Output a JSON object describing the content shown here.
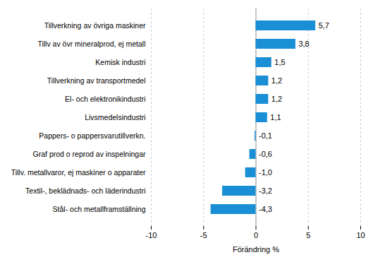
{
  "chart_data": {
    "type": "bar",
    "orientation": "horizontal",
    "categories": [
      "Tillverkning av övriga maskiner",
      "Tillv av övr mineralprod, ej metall",
      "Kemisk industri",
      "Tillverkning av transportmedel",
      "El- och elektronikindustri",
      "Livsmedelsindustri",
      "Pappers- o pappersvarutillverkn.",
      "Graf prod o reprod av inspelningar",
      "Tillv. metallvaror, ej maskiner o apparater",
      "Textil-, beklädnads- och läderindustri",
      "Stål- och metallframställning"
    ],
    "values": [
      5.7,
      3.8,
      1.5,
      1.2,
      1.2,
      1.1,
      -0.1,
      -0.6,
      -1.0,
      -3.2,
      -4.3
    ],
    "value_labels": [
      "5,7",
      "3,8",
      "1,5",
      "1,2",
      "1,2",
      "1,1",
      "-0,1",
      "-0,6",
      "-1,0",
      "-3,2",
      "-4,3"
    ],
    "data_labels": true,
    "color": "#1a8fd6",
    "xlabel": "Förändring %",
    "xlim": [
      -10,
      10
    ],
    "xticks": [
      -10,
      -5,
      0,
      5,
      10
    ],
    "grid": true
  }
}
